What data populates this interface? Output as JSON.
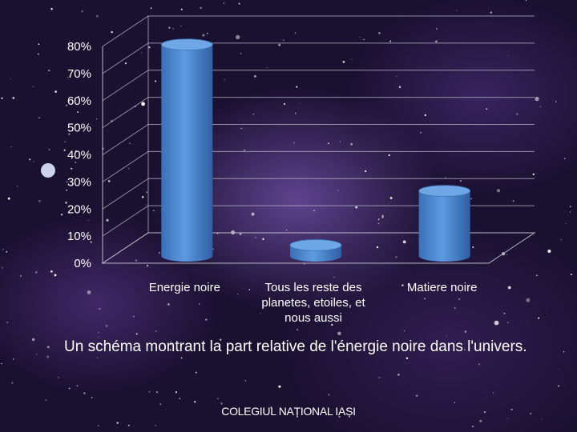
{
  "chart_data": {
    "type": "bar",
    "categories": [
      "Energie noire",
      "Tous les reste des planetes, etoiles, et nous aussi",
      "Matiere noire"
    ],
    "category_lines": [
      [
        "Energie noire"
      ],
      [
        "Tous les reste des",
        "planetes, etoiles, et",
        "nous aussi"
      ],
      [
        "Matiere noire"
      ]
    ],
    "values": [
      0.78,
      0.04,
      0.24
    ],
    "ylim": [
      0,
      0.8
    ],
    "y_ticks": [
      0,
      0.1,
      0.2,
      0.3,
      0.4,
      0.5,
      0.6,
      0.7,
      0.8
    ],
    "y_tick_labels": [
      "0%",
      "10%",
      "20%",
      "30%",
      "40%",
      "50%",
      "60%",
      "70%",
      "80%"
    ],
    "bar_color": "#4a86cc",
    "grid": true,
    "legend": "none"
  },
  "caption": "Un schéma montrant la part relative de l'énergie noire dans l'univers.",
  "footer": "COLEGIUL NAȚIONAL IAȘI"
}
